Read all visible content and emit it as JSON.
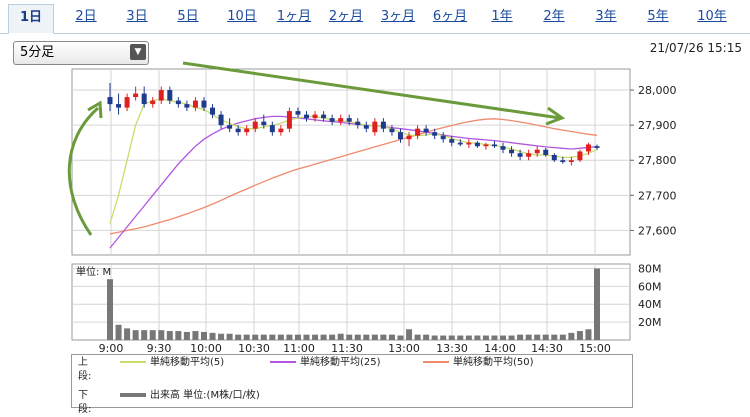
{
  "tabs": [
    {
      "label": "1日",
      "active": true
    },
    {
      "label": "2日"
    },
    {
      "label": "3日"
    },
    {
      "label": "5日"
    },
    {
      "label": "10日"
    },
    {
      "label": "1ヶ月"
    },
    {
      "label": "2ヶ月"
    },
    {
      "label": "3ヶ月"
    },
    {
      "label": "6ヶ月"
    },
    {
      "label": "1年"
    },
    {
      "label": "2年"
    },
    {
      "label": "3年"
    },
    {
      "label": "5年"
    },
    {
      "label": "10年"
    }
  ],
  "interval_select": {
    "value": "5分足"
  },
  "datetime": "21/07/26 15:15",
  "legend": {
    "upper_label": "上段:",
    "lower_label": "下段:",
    "ma5": "単純移動平均(5)",
    "ma25": "単純移動平均(25)",
    "ma50": "単純移動平均(50)",
    "volume": "出来高 単位:(M株/口/枚)"
  },
  "colors": {
    "up": "#e02020",
    "down": "#1f3b8c",
    "ma5": "#c8dd6a",
    "ma25": "#b257e0",
    "ma50": "#f08a6e",
    "volume": "#777777",
    "arrow": "#6a9a3a"
  },
  "chart_data": {
    "type": "candlestick",
    "x_ticks": [
      "9:00",
      "9:30",
      "10:00",
      "10:30",
      "11:00",
      "11:30",
      "13:00",
      "13:30",
      "14:00",
      "14:30",
      "15:00"
    ],
    "price_axis": {
      "ticks": [
        "28,000",
        "27,900",
        "27,800",
        "27,700",
        "27,600"
      ],
      "tick_values": [
        28000,
        27900,
        27800,
        27700,
        27600
      ],
      "ylim": [
        27530,
        28060
      ]
    },
    "volume_axis": {
      "ticks": [
        "80M",
        "60M",
        "40M",
        "20M"
      ],
      "tick_values": [
        80,
        60,
        40,
        20
      ],
      "ylim": [
        0,
        85
      ],
      "unit_label": "単位: M"
    },
    "candles": [
      [
        27980,
        28020,
        27940,
        27960
      ],
      [
        27960,
        27990,
        27930,
        27950
      ],
      [
        27950,
        27990,
        27940,
        27980
      ],
      [
        27980,
        28010,
        27970,
        27990
      ],
      [
        27990,
        28010,
        27950,
        27960
      ],
      [
        27960,
        27980,
        27950,
        27970
      ],
      [
        27970,
        28010,
        27960,
        28000
      ],
      [
        28000,
        28010,
        27960,
        27970
      ],
      [
        27970,
        27980,
        27950,
        27960
      ],
      [
        27960,
        27970,
        27940,
        27950
      ],
      [
        27950,
        27980,
        27940,
        27970
      ],
      [
        27970,
        27980,
        27940,
        27950
      ],
      [
        27950,
        27960,
        27920,
        27930
      ],
      [
        27930,
        27940,
        27890,
        27900
      ],
      [
        27900,
        27920,
        27880,
        27890
      ],
      [
        27890,
        27900,
        27870,
        27880
      ],
      [
        27880,
        27900,
        27870,
        27890
      ],
      [
        27890,
        27920,
        27880,
        27910
      ],
      [
        27910,
        27930,
        27890,
        27900
      ],
      [
        27900,
        27910,
        27870,
        27880
      ],
      [
        27880,
        27900,
        27870,
        27890
      ],
      [
        27890,
        27950,
        27880,
        27940
      ],
      [
        27940,
        27950,
        27920,
        27930
      ],
      [
        27930,
        27940,
        27910,
        27920
      ],
      [
        27920,
        27940,
        27910,
        27930
      ],
      [
        27930,
        27940,
        27910,
        27920
      ],
      [
        27920,
        27930,
        27900,
        27910
      ],
      [
        27910,
        27930,
        27900,
        27920
      ],
      [
        27920,
        27930,
        27900,
        27910
      ],
      [
        27910,
        27920,
        27890,
        27900
      ],
      [
        27900,
        27910,
        27880,
        27890
      ],
      [
        27880,
        27920,
        27870,
        27910
      ],
      [
        27910,
        27920,
        27880,
        27890
      ],
      [
        27890,
        27900,
        27870,
        27880
      ],
      [
        27880,
        27890,
        27850,
        27860
      ],
      [
        27860,
        27880,
        27840,
        27870
      ],
      [
        27870,
        27900,
        27860,
        27890
      ],
      [
        27890,
        27900,
        27870,
        27880
      ],
      [
        27880,
        27890,
        27860,
        27870
      ],
      [
        27870,
        27880,
        27850,
        27860
      ],
      [
        27860,
        27870,
        27840,
        27850
      ],
      [
        27850,
        27860,
        27840,
        27845
      ],
      [
        27845,
        27860,
        27835,
        27850
      ],
      [
        27850,
        27855,
        27835,
        27840
      ],
      [
        27840,
        27850,
        27830,
        27845
      ],
      [
        27845,
        27855,
        27835,
        27840
      ],
      [
        27840,
        27850,
        27820,
        27830
      ],
      [
        27830,
        27840,
        27810,
        27820
      ],
      [
        27820,
        27830,
        27800,
        27810
      ],
      [
        27810,
        27830,
        27800,
        27820
      ],
      [
        27820,
        27840,
        27810,
        27830
      ],
      [
        27830,
        27835,
        27810,
        27815
      ],
      [
        27815,
        27820,
        27795,
        27800
      ],
      [
        27800,
        27810,
        27790,
        27795
      ],
      [
        27795,
        27810,
        27785,
        27800
      ],
      [
        27800,
        27830,
        27795,
        27825
      ],
      [
        27825,
        27850,
        27815,
        27845
      ],
      [
        27840,
        27845,
        27830,
        27835
      ]
    ],
    "ma5": [
      27620,
      27700,
      27800,
      27900,
      27960,
      27970,
      27975,
      27970,
      27965,
      27960,
      27950,
      27945,
      27930,
      27915,
      27905,
      27895,
      27890,
      27890,
      27895,
      27900,
      27905,
      27915,
      27920,
      27925,
      27925,
      27920,
      27915,
      27912,
      27910,
      27905,
      27900,
      27898,
      27895,
      27890,
      27880,
      27872,
      27870,
      27872,
      27875,
      27870,
      27862,
      27855,
      27850,
      27848,
      27845,
      27842,
      27838,
      27832,
      27825,
      27818,
      27815,
      27815,
      27812,
      27808,
      27808,
      27812,
      27820,
      27830
    ],
    "ma25": [
      27550,
      27580,
      27610,
      27640,
      27670,
      27700,
      27730,
      27760,
      27790,
      27815,
      27840,
      27860,
      27875,
      27888,
      27898,
      27906,
      27912,
      27918,
      27922,
      27925,
      27925,
      27923,
      27920,
      27918,
      27915,
      27912,
      27910,
      27908,
      27905,
      27902,
      27900,
      27898,
      27896,
      27893,
      27890,
      27887,
      27884,
      27880,
      27876,
      27872,
      27868,
      27865,
      27862,
      27860,
      27858,
      27856,
      27853,
      27850,
      27847,
      27844,
      27841,
      27838,
      27836,
      27834,
      27832,
      27834,
      27837,
      27839
    ],
    "ma50": [
      27590,
      27595,
      27600,
      27605,
      27610,
      27617,
      27624,
      27631,
      27639,
      27647,
      27656,
      27665,
      27675,
      27686,
      27697,
      27708,
      27718,
      27729,
      27739,
      27749,
      27758,
      27767,
      27775,
      27782,
      27789,
      27796,
      27803,
      27810,
      27817,
      27824,
      27831,
      27838,
      27845,
      27852,
      27859,
      27866,
      27873,
      27880,
      27887,
      27893,
      27899,
      27905,
      27910,
      27914,
      27917,
      27918,
      27916,
      27913,
      27909,
      27905,
      27900,
      27895,
      27890,
      27886,
      27882,
      27878,
      27874,
      27871
    ],
    "volume": [
      68,
      17,
      13,
      11,
      11,
      11,
      11,
      10,
      10,
      9,
      10,
      9,
      8,
      7,
      7,
      6,
      6,
      6,
      6,
      6,
      6,
      6,
      6,
      6,
      6,
      6,
      6,
      7,
      6,
      6,
      6,
      6,
      6,
      6,
      5,
      12,
      6,
      6,
      5,
      5,
      5,
      5,
      5,
      5,
      5,
      5,
      5,
      5,
      6,
      6,
      6,
      6,
      6,
      6,
      8,
      10,
      12,
      80
    ]
  }
}
